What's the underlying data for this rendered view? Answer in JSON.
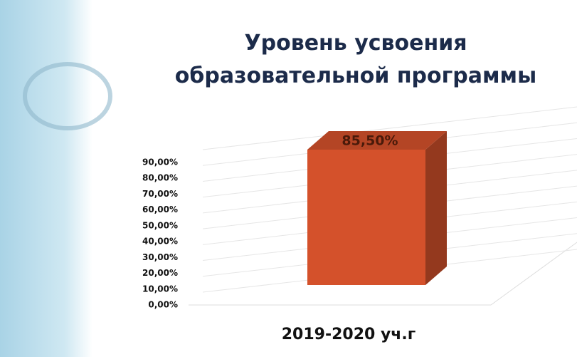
{
  "chart_data": {
    "type": "bar3d",
    "title": "Уровень усвоения образовательной программы",
    "categories": [
      "2019-2020 уч.г"
    ],
    "values": [
      85.5
    ],
    "value_labels": [
      "85,50%"
    ],
    "color": "#d4512b",
    "ylim": [
      0,
      90
    ],
    "yticks": [
      {
        "value": 0,
        "label": "0,00%"
      },
      {
        "value": 10,
        "label": "10,00%"
      },
      {
        "value": 20,
        "label": "20,00%"
      },
      {
        "value": 30,
        "label": "30,00%"
      },
      {
        "value": 40,
        "label": "40,00%"
      },
      {
        "value": 50,
        "label": "50,00%"
      },
      {
        "value": 60,
        "label": "60,00%"
      },
      {
        "value": 70,
        "label": "70,00%"
      },
      {
        "value": 80,
        "label": "80,00%"
      },
      {
        "value": 90,
        "label": "90,00%"
      }
    ],
    "grid": true
  }
}
